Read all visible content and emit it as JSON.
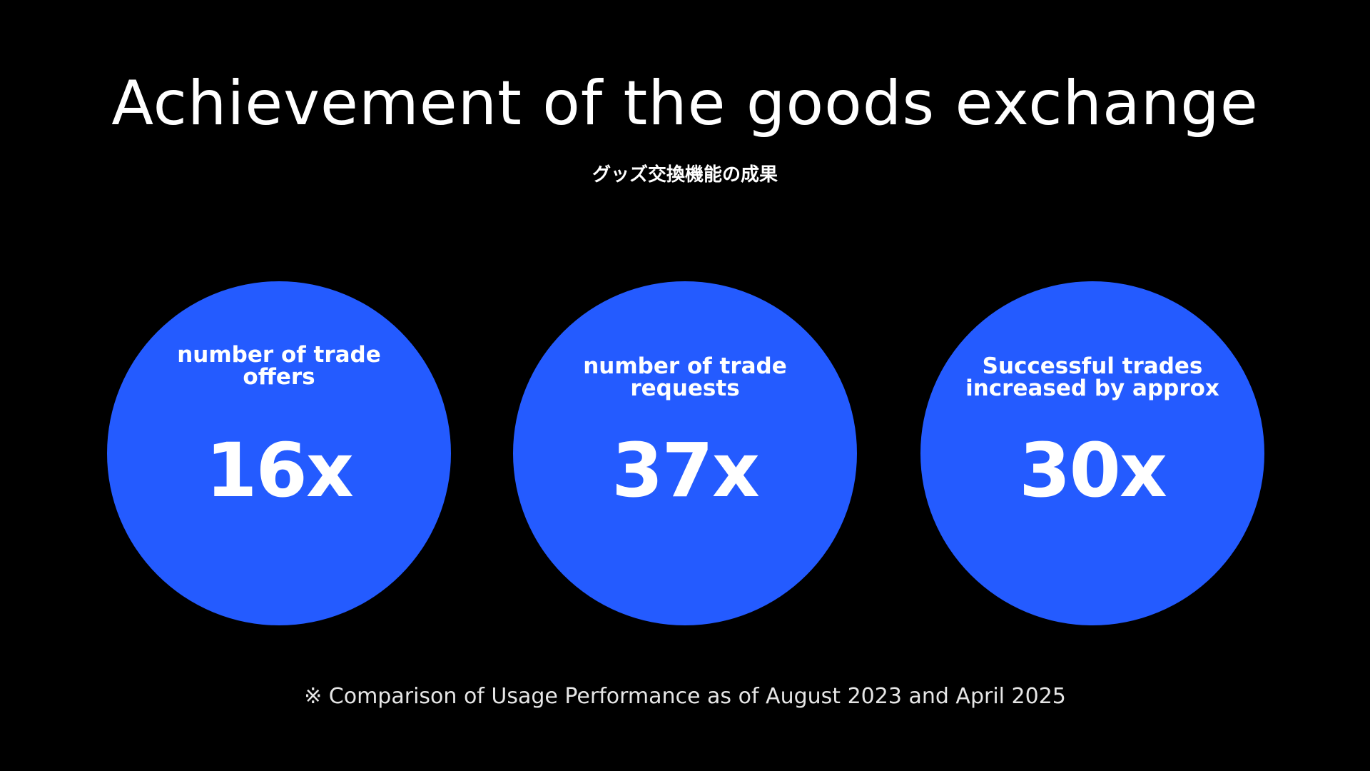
{
  "header": {
    "title": "Achievement of the goods exchange",
    "subtitle": "グッズ交換機能の成果"
  },
  "stats": [
    {
      "label": [
        "number of trade",
        "offers"
      ],
      "value": "16x"
    },
    {
      "label": [
        "number of trade",
        "requests"
      ],
      "value": "37x"
    },
    {
      "label": [
        "Successful trades",
        "increased by approx"
      ],
      "value": "30x"
    }
  ],
  "footnote": "※ Comparison of Usage Performance as of August 2023 and April 2025"
}
